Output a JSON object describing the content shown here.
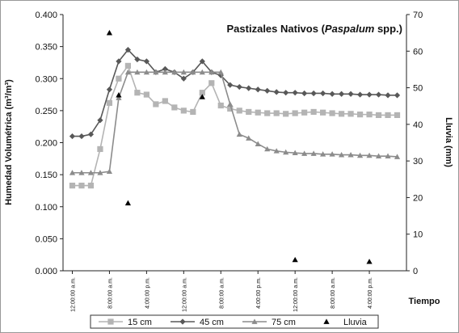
{
  "chart_data": {
    "type": "line",
    "title": [
      "Pastizales Nativos (",
      "Paspalum",
      " spp.)"
    ],
    "y_label": "Humedad Volumétrica (m³/m³)",
    "y2_label": "Lluvia (mm)",
    "x_label": "Tiempo",
    "x": [
      0,
      2,
      4,
      6,
      8,
      10,
      12,
      14,
      16,
      18,
      20,
      22,
      24,
      26,
      28,
      30,
      32,
      34,
      36,
      38,
      40,
      42,
      44,
      46,
      48,
      50,
      52,
      54,
      56,
      58,
      60,
      62,
      64,
      66,
      68,
      70
    ],
    "xlim": [
      -2,
      72
    ],
    "xticks": [
      {
        "value": 0,
        "label": "12:00:00 a.m."
      },
      {
        "value": 8,
        "label": "8:00:00 a.m."
      },
      {
        "value": 16,
        "label": "4:00:00 p.m."
      },
      {
        "value": 24,
        "label": "12:00:00 a.m."
      },
      {
        "value": 32,
        "label": "8:00:00 a.m."
      },
      {
        "value": 40,
        "label": "4:00:00 p.m."
      },
      {
        "value": 48,
        "label": "12:00:00 a.m."
      },
      {
        "value": 56,
        "label": "8:00:00 a.m."
      },
      {
        "value": 64,
        "label": "4:00:00 p.m."
      }
    ],
    "ylim": [
      0,
      0.4
    ],
    "yticks": [
      {
        "value": 0,
        "label": "0.000"
      },
      {
        "value": 0.05,
        "label": "0.050"
      },
      {
        "value": 0.1,
        "label": "0.100"
      },
      {
        "value": 0.15,
        "label": "0.150"
      },
      {
        "value": 0.2,
        "label": "0.200"
      },
      {
        "value": 0.25,
        "label": "0.250"
      },
      {
        "value": 0.3,
        "label": "0.300"
      },
      {
        "value": 0.35,
        "label": "0.350"
      },
      {
        "value": 0.4,
        "label": "0.400"
      }
    ],
    "y2lim": [
      0,
      70
    ],
    "y2ticks": [
      0,
      10,
      20,
      30,
      40,
      50,
      60,
      70
    ],
    "series": [
      {
        "name": "15 cm",
        "color": "#b4b4b4",
        "marker": "square",
        "line": true,
        "values": [
          0.133,
          0.133,
          0.133,
          0.19,
          0.262,
          0.3,
          0.32,
          0.278,
          0.275,
          0.26,
          0.265,
          0.255,
          0.25,
          0.248,
          0.278,
          0.293,
          0.258,
          0.253,
          0.25,
          0.248,
          0.247,
          0.246,
          0.246,
          0.245,
          0.246,
          0.247,
          0.248,
          0.247,
          0.246,
          0.245,
          0.245,
          0.244,
          0.244,
          0.243,
          0.243,
          0.243
        ]
      },
      {
        "name": "45 cm",
        "color": "#585858",
        "marker": "diamond",
        "line": true,
        "values": [
          0.21,
          0.21,
          0.213,
          0.235,
          0.283,
          0.327,
          0.345,
          0.33,
          0.327,
          0.31,
          0.315,
          0.31,
          0.3,
          0.31,
          0.327,
          0.31,
          0.305,
          0.29,
          0.287,
          0.285,
          0.283,
          0.281,
          0.279,
          0.278,
          0.278,
          0.277,
          0.277,
          0.277,
          0.276,
          0.276,
          0.276,
          0.275,
          0.275,
          0.275,
          0.274,
          0.274
        ]
      },
      {
        "name": "75 cm",
        "color": "#8c8c8c",
        "marker": "triangle",
        "line": true,
        "values": [
          0.153,
          0.153,
          0.153,
          0.153,
          0.155,
          0.27,
          0.31,
          0.31,
          0.31,
          0.31,
          0.31,
          0.31,
          0.31,
          0.31,
          0.31,
          0.31,
          0.31,
          0.26,
          0.213,
          0.207,
          0.198,
          0.19,
          0.187,
          0.185,
          0.184,
          0.183,
          0.183,
          0.182,
          0.182,
          0.181,
          0.181,
          0.18,
          0.18,
          0.179,
          0.179,
          0.178
        ]
      },
      {
        "name": "Lluvia",
        "color": "#000000",
        "marker": "triangle",
        "line": false,
        "axis": "y2",
        "x": [
          8,
          10,
          12,
          28,
          48,
          64
        ],
        "values": [
          65,
          48,
          18.5,
          47.5,
          3,
          2.5
        ]
      }
    ]
  }
}
